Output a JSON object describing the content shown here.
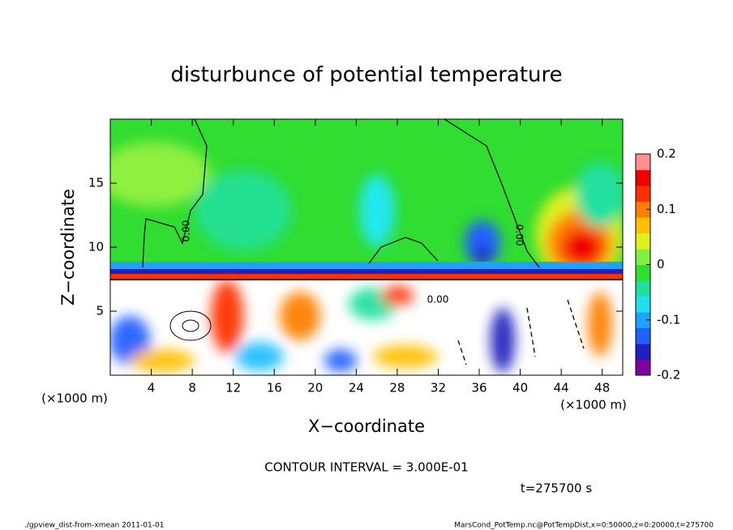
{
  "chart_data": {
    "type": "contour",
    "title": "disturbunce of potential temperature",
    "x_label": "X−coordinate",
    "y_label": "Z−coordinate",
    "x_unit": "(×1000 m)",
    "x_unit_right": "(×1000 m)",
    "xlim": [
      0,
      50
    ],
    "ylim": [
      0,
      20
    ],
    "xticks": [
      4,
      8,
      12,
      16,
      20,
      24,
      28,
      32,
      36,
      40,
      44,
      48
    ],
    "yticks": [
      5,
      10,
      15
    ],
    "colorbar": {
      "lim": [
        -0.2,
        0.2
      ],
      "ticks": [
        -0.2,
        -0.1,
        0,
        0.1,
        0.2
      ],
      "colors": [
        "#8000a0",
        "#2020c0",
        "#2060ff",
        "#20a0ff",
        "#20e0f0",
        "#20e0a0",
        "#30e030",
        "#80f040",
        "#e0f020",
        "#ffc000",
        "#ff8000",
        "#ff3000",
        "#f00000",
        "#ff9090"
      ]
    },
    "contour_labels": [
      "0.00",
      "0.00",
      "0.00"
    ],
    "contour_interval": "CONTOUR INTERVAL = 3.000E-01",
    "time_label": "t=275700 s",
    "footer_left": "./gpview_dist-from-xmean  2011-01-01",
    "footer_right": "MarsCond_PotTemp.nc@PotTempDist,x=0:50000,z=0:20000,t=275700"
  }
}
